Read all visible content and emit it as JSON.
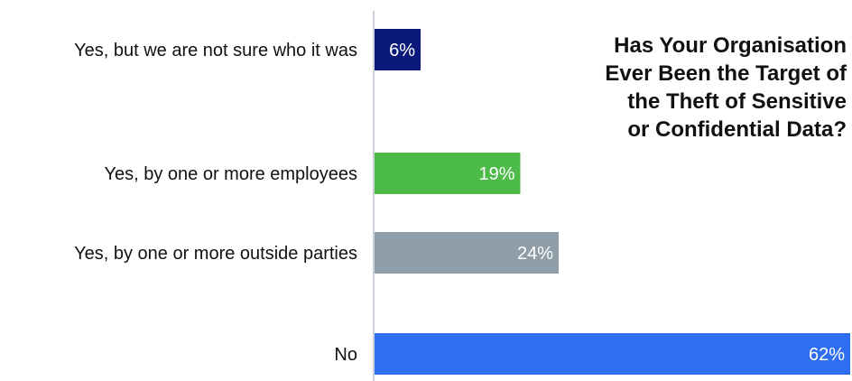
{
  "chart_data": {
    "type": "bar",
    "orientation": "horizontal",
    "title_lines": [
      "Has Your Organisation",
      "Ever Been the Target of",
      "the Theft of Sensitive",
      "or Confidential Data?"
    ],
    "categories": [
      "Yes, but we are not sure who it was",
      "Yes, by one or more employees",
      "Yes, by one or more outside parties",
      "No"
    ],
    "values": [
      6,
      19,
      24,
      62
    ],
    "value_labels": [
      "6%",
      "19%",
      "24%",
      "62%"
    ],
    "colors": [
      "#0b1a7a",
      "#4cbb47",
      "#8f9ea9",
      "#2f6ef0"
    ],
    "xlim": [
      0,
      62
    ],
    "xlabel": "",
    "ylabel": "",
    "grid": false,
    "legend": "none"
  }
}
